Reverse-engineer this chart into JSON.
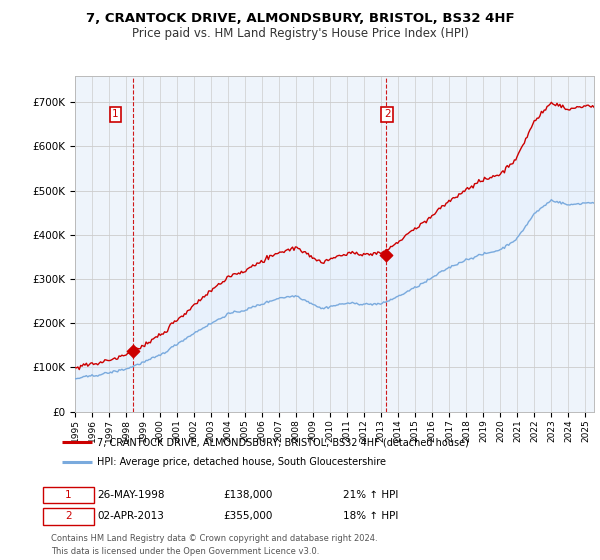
{
  "title": "7, CRANTOCK DRIVE, ALMONDSBURY, BRISTOL, BS32 4HF",
  "subtitle": "Price paid vs. HM Land Registry's House Price Index (HPI)",
  "legend_line1": "7, CRANTOCK DRIVE, ALMONDSBURY, BRISTOL, BS32 4HF (detached house)",
  "legend_line2": "HPI: Average price, detached house, South Gloucestershire",
  "footnote": "Contains HM Land Registry data © Crown copyright and database right 2024.\nThis data is licensed under the Open Government Licence v3.0.",
  "sale1_date": "26-MAY-1998",
  "sale1_price": "£138,000",
  "sale1_hpi": "21% ↑ HPI",
  "sale2_date": "02-APR-2013",
  "sale2_price": "£355,000",
  "sale2_hpi": "18% ↑ HPI",
  "sale1_year": 1998.38,
  "sale1_value": 138000,
  "sale2_year": 2013.25,
  "sale2_value": 355000,
  "red_line_color": "#cc0000",
  "blue_line_color": "#7aaadd",
  "fill_color": "#ddeeff",
  "dashed_vline_color": "#cc0000",
  "bg_color": "#eef4fb",
  "ylim_min": 0,
  "ylim_max": 760000,
  "xlim_min": 1995.0,
  "xlim_max": 2025.5
}
